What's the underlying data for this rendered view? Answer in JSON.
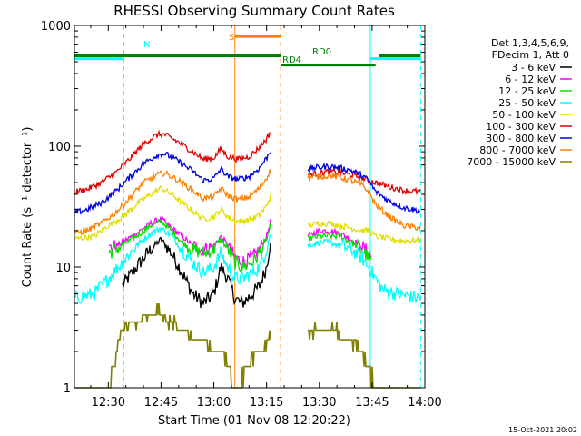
{
  "chart_data": {
    "type": "line",
    "title": "RHESSI Observing Summary Count Rates",
    "xlabel": "Start Time (01-Nov-08 12:20:22)",
    "ylabel": "Count Rate (s⁻¹ detector⁻¹)",
    "footer": "15-Oct-2021 20:02",
    "x_range_minutes": [
      20.37,
      120.0
    ],
    "x_ticks": [
      {
        "min": 30,
        "label": "12:30"
      },
      {
        "min": 45,
        "label": "12:45"
      },
      {
        "min": 60,
        "label": "13:00"
      },
      {
        "min": 75,
        "label": "13:15"
      },
      {
        "min": 90,
        "label": "13:30"
      },
      {
        "min": 105,
        "label": "13:45"
      },
      {
        "min": 120,
        "label": "14:00"
      }
    ],
    "y_scale": "log",
    "ylim": [
      1,
      1000
    ],
    "y_ticks": [
      {
        "v": 1,
        "label": "1"
      },
      {
        "v": 10,
        "label": "10"
      },
      {
        "v": 100,
        "label": "100"
      },
      {
        "v": 1000,
        "label": "1000"
      }
    ],
    "legend": {
      "position": "right",
      "header": [
        "Det 1,3,4,5,6,9,",
        "FDecim 1, Att 0"
      ],
      "items": [
        {
          "label": "3 - 6 keV",
          "color": "#000000"
        },
        {
          "label": "6 - 12 keV",
          "color": "#ff00ff"
        },
        {
          "label": "12 - 25 keV",
          "color": "#00e000"
        },
        {
          "label": "25 - 50 keV",
          "color": "#00ffff"
        },
        {
          "label": "50 - 100 keV",
          "color": "#e0e000"
        },
        {
          "label": "100 - 300 keV",
          "color": "#e00000"
        },
        {
          "label": "300 - 800 keV",
          "color": "#0000e0"
        },
        {
          "label": "800 - 7000 keV",
          "color": "#ff8000"
        },
        {
          "label": "7000 - 15000 keV",
          "color": "#808000"
        }
      ]
    },
    "annotations": {
      "n_label": "N",
      "s_label": "S",
      "rd0_label": "RD0",
      "rd4_label": "RD4"
    },
    "flag_bars": [
      {
        "name": "night",
        "color": "#00ffff",
        "y": 530,
        "segments": [
          [
            20.4,
            34.4
          ],
          [
            104.5,
            118.8
          ]
        ]
      },
      {
        "name": "saa",
        "color": "#ff8000",
        "y": 810,
        "segments": [
          [
            66.0,
            79.0
          ]
        ]
      },
      {
        "name": "rd0",
        "color": "#008000",
        "y": 560,
        "segments": [
          [
            20.4,
            79.0
          ],
          [
            107.0,
            118.8
          ]
        ]
      },
      {
        "name": "rd4",
        "color": "#008000",
        "y": 470,
        "segments": [
          [
            79.0,
            106.0
          ]
        ]
      }
    ],
    "markers": [
      {
        "x": 34.4,
        "color": "#00ffff",
        "style": "dashed"
      },
      {
        "x": 66.0,
        "color": "#ff8000",
        "style": "solid"
      },
      {
        "x": 79.0,
        "color": "#ff8000",
        "style": "dashed"
      },
      {
        "x": 104.5,
        "color": "#00ffff",
        "style": "solid"
      },
      {
        "x": 118.8,
        "color": "#00ffff",
        "style": "dashed"
      }
    ],
    "gap": [
      76.5,
      86.0
    ],
    "series": [
      {
        "name": "3 - 6 keV",
        "color": "#000000",
        "points": [
          [
            34,
            7
          ],
          [
            38,
            10
          ],
          [
            42,
            14
          ],
          [
            45,
            17
          ],
          [
            48,
            13
          ],
          [
            51,
            9
          ],
          [
            54,
            6
          ],
          [
            57,
            5
          ],
          [
            60,
            6
          ],
          [
            62,
            10
          ],
          [
            64,
            8
          ],
          [
            66,
            5.5
          ],
          [
            68,
            5
          ],
          [
            71,
            6
          ],
          [
            73,
            7
          ],
          [
            75,
            10
          ],
          [
            76.3,
            18
          ]
        ]
      },
      {
        "name": "6 - 12 keV",
        "color": "#ff00ff",
        "points": [
          [
            30,
            14
          ],
          [
            34,
            16
          ],
          [
            38,
            19
          ],
          [
            42,
            23
          ],
          [
            45,
            25
          ],
          [
            48,
            21
          ],
          [
            51,
            18
          ],
          [
            54,
            15
          ],
          [
            57,
            14
          ],
          [
            60,
            15
          ],
          [
            62,
            18
          ],
          [
            64,
            15
          ],
          [
            66,
            12
          ],
          [
            68,
            11
          ],
          [
            71,
            12
          ],
          [
            73,
            14
          ],
          [
            75,
            18
          ],
          [
            76.3,
            25
          ],
          [
            86.5,
            18
          ],
          [
            90,
            20
          ],
          [
            93,
            20
          ],
          [
            96,
            19
          ],
          [
            99,
            17
          ],
          [
            102,
            15
          ],
          [
            104,
            13
          ],
          [
            105,
            12
          ]
        ]
      },
      {
        "name": "12 - 25 keV",
        "color": "#00e000",
        "points": [
          [
            30,
            13
          ],
          [
            34,
            15
          ],
          [
            38,
            18
          ],
          [
            42,
            22
          ],
          [
            45,
            24
          ],
          [
            48,
            20
          ],
          [
            51,
            16
          ],
          [
            54,
            14
          ],
          [
            57,
            13
          ],
          [
            60,
            14
          ],
          [
            62,
            17
          ],
          [
            64,
            14
          ],
          [
            66,
            11
          ],
          [
            68,
            10
          ],
          [
            71,
            11
          ],
          [
            73,
            13
          ],
          [
            75,
            17
          ],
          [
            76.3,
            23
          ],
          [
            86.5,
            17
          ],
          [
            90,
            18
          ],
          [
            93,
            18
          ],
          [
            96,
            18
          ],
          [
            99,
            16
          ],
          [
            102,
            14
          ],
          [
            104,
            12
          ],
          [
            105,
            11
          ]
        ]
      },
      {
        "name": "25 - 50 keV",
        "color": "#00ffff",
        "points": [
          [
            20.4,
            5.5
          ],
          [
            26,
            6
          ],
          [
            30,
            8
          ],
          [
            34,
            11
          ],
          [
            38,
            15
          ],
          [
            42,
            19
          ],
          [
            45,
            21
          ],
          [
            48,
            18
          ],
          [
            51,
            14
          ],
          [
            54,
            11
          ],
          [
            57,
            9
          ],
          [
            60,
            10
          ],
          [
            62,
            13
          ],
          [
            64,
            10
          ],
          [
            66,
            8
          ],
          [
            68,
            8
          ],
          [
            71,
            9
          ],
          [
            73,
            10
          ],
          [
            75,
            14
          ],
          [
            76.3,
            20
          ],
          [
            86.5,
            15
          ],
          [
            90,
            16
          ],
          [
            93,
            16
          ],
          [
            96,
            15
          ],
          [
            99,
            14
          ],
          [
            102,
            12
          ],
          [
            104,
            10
          ],
          [
            106,
            8
          ],
          [
            108,
            6.5
          ],
          [
            112,
            6
          ],
          [
            118.8,
            5.5
          ]
        ]
      },
      {
        "name": "50 - 100 keV",
        "color": "#e0e000",
        "points": [
          [
            20.4,
            17
          ],
          [
            26,
            18
          ],
          [
            30,
            22
          ],
          [
            34,
            26
          ],
          [
            38,
            33
          ],
          [
            42,
            40
          ],
          [
            45,
            45
          ],
          [
            48,
            40
          ],
          [
            51,
            34
          ],
          [
            54,
            29
          ],
          [
            57,
            25
          ],
          [
            60,
            26
          ],
          [
            62,
            30
          ],
          [
            64,
            26
          ],
          [
            66,
            24
          ],
          [
            68,
            24
          ],
          [
            71,
            25
          ],
          [
            73,
            27
          ],
          [
            75,
            32
          ],
          [
            76.3,
            40
          ],
          [
            86.5,
            22
          ],
          [
            90,
            23
          ],
          [
            93,
            23
          ],
          [
            96,
            22
          ],
          [
            99,
            21
          ],
          [
            102,
            20
          ],
          [
            104,
            20
          ],
          [
            106,
            18
          ],
          [
            110,
            17
          ],
          [
            114,
            16.5
          ],
          [
            118.8,
            16.5
          ]
        ]
      },
      {
        "name": "100 - 300 keV",
        "color": "#e00000",
        "points": [
          [
            20.4,
            42
          ],
          [
            24,
            44
          ],
          [
            28,
            50
          ],
          [
            32,
            60
          ],
          [
            36,
            78
          ],
          [
            40,
            105
          ],
          [
            44,
            125
          ],
          [
            46,
            125
          ],
          [
            50,
            108
          ],
          [
            54,
            90
          ],
          [
            57,
            78
          ],
          [
            60,
            80
          ],
          [
            62,
            95
          ],
          [
            64,
            82
          ],
          [
            67,
            78
          ],
          [
            70,
            82
          ],
          [
            73,
            98
          ],
          [
            75,
            115
          ],
          [
            76.3,
            135
          ],
          [
            86.5,
            58
          ],
          [
            90,
            60
          ],
          [
            93,
            62
          ],
          [
            96,
            60
          ],
          [
            99,
            58
          ],
          [
            102,
            55
          ],
          [
            104,
            52
          ],
          [
            106,
            50
          ],
          [
            110,
            46
          ],
          [
            114,
            43
          ],
          [
            118.8,
            42
          ]
        ]
      },
      {
        "name": "300 - 800 keV",
        "color": "#0000e0",
        "points": [
          [
            20.4,
            28
          ],
          [
            24,
            30
          ],
          [
            28,
            34
          ],
          [
            32,
            42
          ],
          [
            36,
            55
          ],
          [
            40,
            72
          ],
          [
            44,
            85
          ],
          [
            46,
            87
          ],
          [
            50,
            75
          ],
          [
            54,
            62
          ],
          [
            57,
            52
          ],
          [
            60,
            54
          ],
          [
            62,
            65
          ],
          [
            64,
            56
          ],
          [
            67,
            53
          ],
          [
            70,
            56
          ],
          [
            73,
            66
          ],
          [
            75,
            80
          ],
          [
            76.3,
            95
          ],
          [
            86.5,
            65
          ],
          [
            90,
            67
          ],
          [
            93,
            68
          ],
          [
            96,
            66
          ],
          [
            99,
            63
          ],
          [
            102,
            58
          ],
          [
            104,
            52
          ],
          [
            106,
            42
          ],
          [
            110,
            35
          ],
          [
            114,
            31
          ],
          [
            118.8,
            29
          ]
        ]
      },
      {
        "name": "800 - 7000 keV",
        "color": "#ff8000",
        "points": [
          [
            20.4,
            19
          ],
          [
            24,
            20
          ],
          [
            28,
            23
          ],
          [
            32,
            28
          ],
          [
            36,
            37
          ],
          [
            40,
            50
          ],
          [
            44,
            58
          ],
          [
            46,
            60
          ],
          [
            50,
            52
          ],
          [
            54,
            43
          ],
          [
            57,
            37
          ],
          [
            60,
            38
          ],
          [
            62,
            45
          ],
          [
            64,
            39
          ],
          [
            67,
            36
          ],
          [
            70,
            38
          ],
          [
            73,
            45
          ],
          [
            75,
            55
          ],
          [
            76.3,
            65
          ],
          [
            86.5,
            55
          ],
          [
            90,
            56
          ],
          [
            93,
            57
          ],
          [
            96,
            55
          ],
          [
            99,
            52
          ],
          [
            102,
            48
          ],
          [
            104,
            42
          ],
          [
            106,
            33
          ],
          [
            110,
            26
          ],
          [
            114,
            22
          ],
          [
            118.8,
            21
          ]
        ]
      },
      {
        "name": "7000 - 15000 keV",
        "color": "#808000",
        "points": [
          [
            20.4,
            1
          ],
          [
            30,
            1
          ],
          [
            34,
            3
          ],
          [
            38,
            3.5
          ],
          [
            42,
            4
          ],
          [
            45,
            4
          ],
          [
            48,
            3.5
          ],
          [
            51,
            3
          ],
          [
            54,
            2.5
          ],
          [
            57,
            2.5
          ],
          [
            60,
            2
          ],
          [
            62,
            2
          ],
          [
            64,
            1.5
          ],
          [
            66,
            1
          ],
          [
            68,
            1.2
          ],
          [
            70,
            1.5
          ],
          [
            72,
            2
          ],
          [
            74,
            2
          ],
          [
            76.3,
            3
          ],
          [
            86.5,
            3
          ],
          [
            90,
            3
          ],
          [
            93,
            3
          ],
          [
            96,
            2.5
          ],
          [
            99,
            2.5
          ],
          [
            102,
            2
          ],
          [
            104,
            1.5
          ],
          [
            106,
            1
          ],
          [
            118.8,
            1
          ]
        ]
      }
    ]
  }
}
